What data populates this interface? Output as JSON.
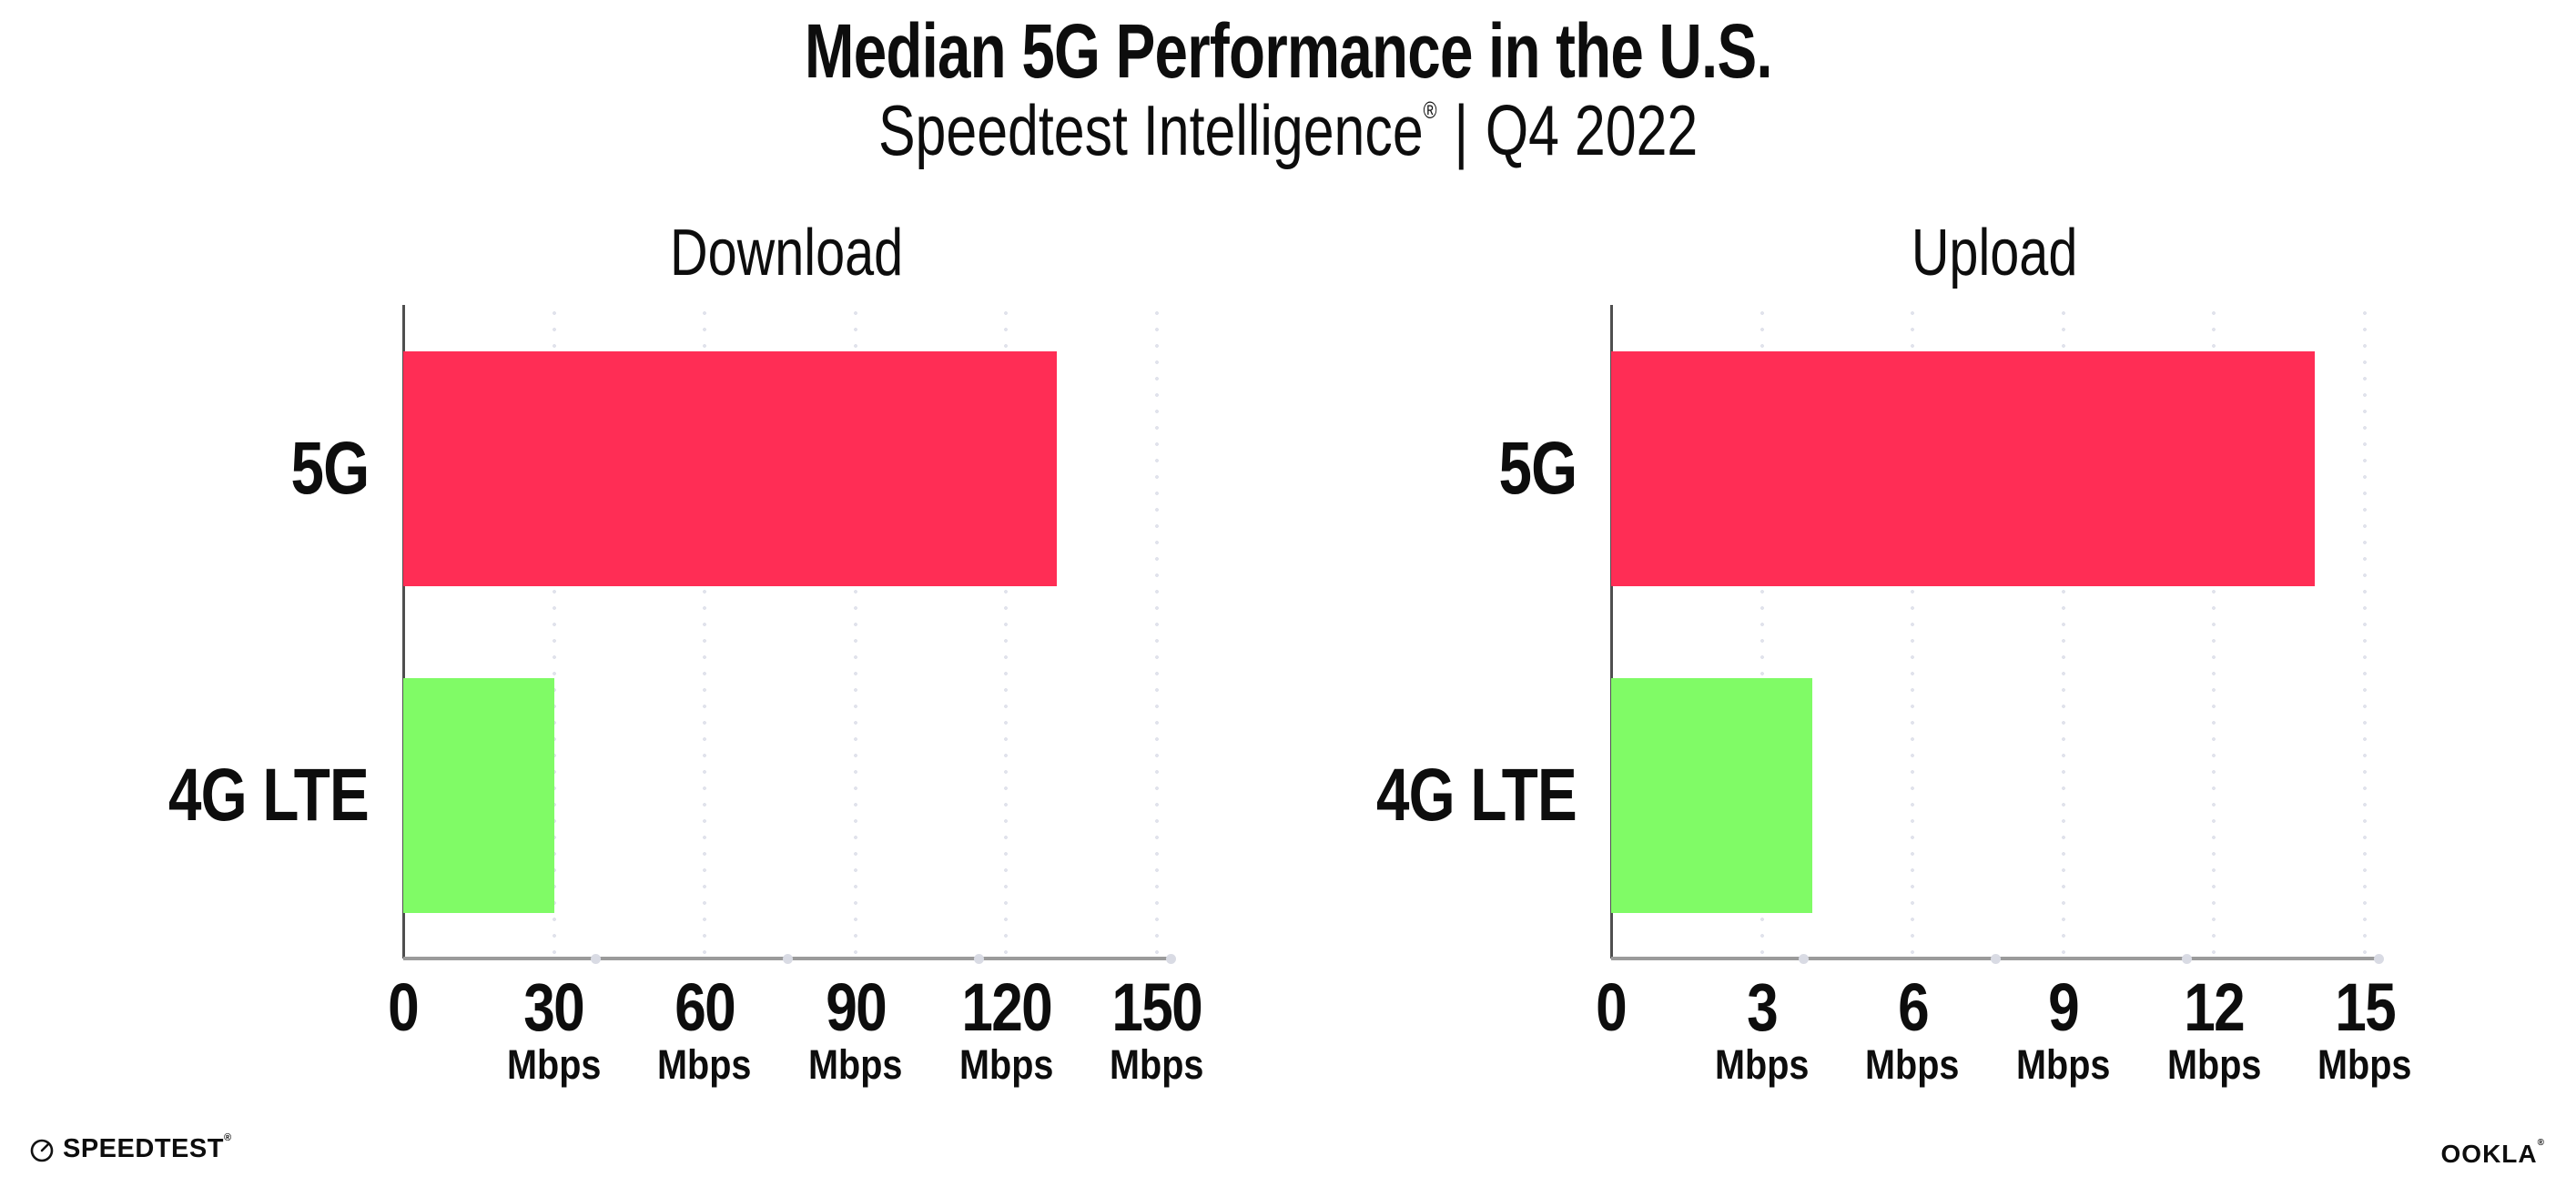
{
  "header": {
    "title": "Median 5G Performance in the U.S.",
    "subtitle_brand": "Speedtest Intelligence",
    "subtitle_regmark": "®",
    "subtitle_separator": "|",
    "subtitle_period": "Q4 2022"
  },
  "chart_data": [
    {
      "type": "bar",
      "orientation": "horizontal",
      "title": "Download",
      "categories": [
        "5G",
        "4G LTE"
      ],
      "values": [
        130,
        30
      ],
      "unit": "Mbps",
      "xlim": [
        0,
        150
      ],
      "xticks": [
        0,
        30,
        60,
        90,
        120,
        150
      ],
      "bar_colors": [
        "#FF2D55",
        "#80FB66"
      ],
      "legend": "none",
      "grid": "vertical-dotted"
    },
    {
      "type": "bar",
      "orientation": "horizontal",
      "title": "Upload",
      "categories": [
        "5G",
        "4G LTE"
      ],
      "values": [
        14,
        4
      ],
      "unit": "Mbps",
      "xlim": [
        0,
        15
      ],
      "xticks": [
        0,
        3,
        6,
        9,
        12,
        15
      ],
      "bar_colors": [
        "#FF2D55",
        "#80FB66"
      ],
      "legend": "none",
      "grid": "vertical-dotted"
    }
  ],
  "footer": {
    "speedtest_wordmark": "SPEEDTEST",
    "speedtest_regmark": "®",
    "ookla_wordmark": "OOKLA",
    "ookla_regmark": "®"
  },
  "colors": {
    "bar_5g": "#FF2D55",
    "bar_4g_lte": "#80FB66",
    "x_axis_line": "#9b9b9b",
    "y_axis_line": "#4f4f4f",
    "gridline_dots": "#e1e3ec",
    "text": "#0d0d0d",
    "background": "#ffffff"
  }
}
